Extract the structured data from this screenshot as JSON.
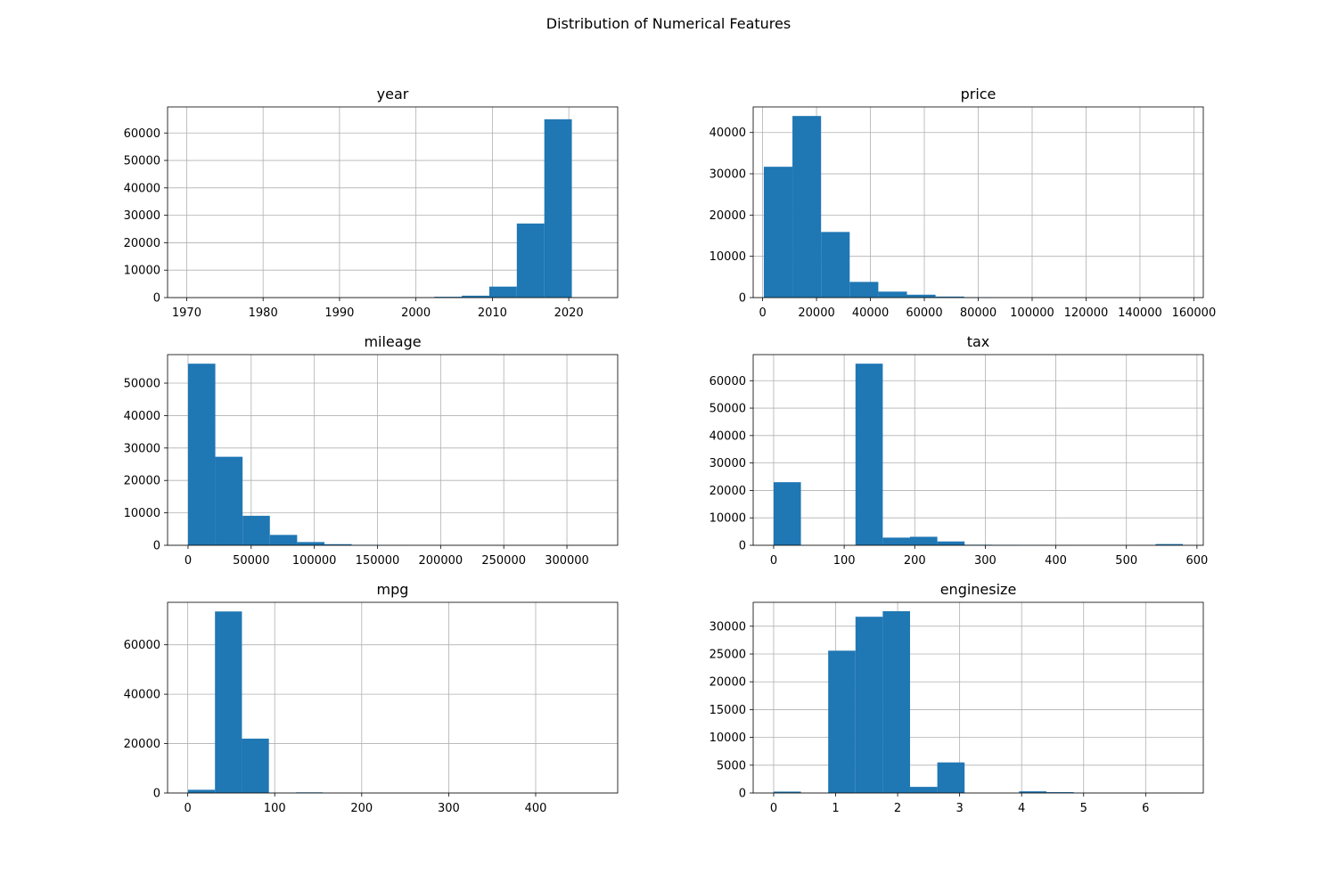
{
  "figure": {
    "title": "Distribution of Numerical Features",
    "bar_color": "#1f77b4",
    "grid_color": "#b0b0b0"
  },
  "chart_data": [
    {
      "type": "bar",
      "title": "year",
      "bin_edges": [
        1970,
        1973.6,
        1977.2,
        1980.8,
        1984.4,
        1988,
        1991.6,
        1995.2,
        1998.8,
        2002.4,
        2006,
        2009.6,
        2013.2,
        2016.8,
        2020.4
      ],
      "values": [
        0,
        0,
        0,
        0,
        0,
        0,
        0,
        0,
        50,
        300,
        700,
        4000,
        27000,
        65000
      ],
      "xlim": [
        1967.5,
        2026.4
      ],
      "ylim": [
        0,
        69500
      ],
      "xticks": [
        1970,
        1980,
        1990,
        2000,
        2010,
        2020
      ],
      "yticks": [
        0,
        10000,
        20000,
        30000,
        40000,
        50000,
        60000
      ],
      "grid": true
    },
    {
      "type": "bar",
      "title": "price",
      "bin_edges": [
        450,
        11070,
        21690,
        32310,
        42930,
        53550,
        64170,
        74790,
        85410,
        96030,
        106650,
        117270,
        127890,
        138510,
        149130,
        159750
      ],
      "values": [
        31700,
        44000,
        15900,
        3800,
        1450,
        700,
        250,
        80,
        30,
        10,
        5,
        3,
        2,
        1,
        1
      ],
      "xlim": [
        -3500,
        163500
      ],
      "ylim": [
        0,
        46200
      ],
      "xticks": [
        0,
        20000,
        40000,
        60000,
        80000,
        100000,
        120000,
        140000,
        160000
      ],
      "yticks": [
        0,
        10000,
        20000,
        30000,
        40000
      ],
      "grid": true
    },
    {
      "type": "bar",
      "title": "mileage",
      "bin_edges": [
        1,
        21600,
        43200,
        64800,
        86400,
        108000,
        129600,
        151200,
        172800,
        194400,
        216000,
        237600,
        259200,
        280800,
        302400,
        324000
      ],
      "values": [
        56000,
        27300,
        9100,
        3200,
        1000,
        350,
        120,
        40,
        15,
        8,
        4,
        2,
        1,
        1,
        1
      ],
      "xlim": [
        -16200,
        340200
      ],
      "ylim": [
        0,
        58800
      ],
      "xticks": [
        0,
        50000,
        100000,
        150000,
        200000,
        250000,
        300000
      ],
      "yticks": [
        0,
        10000,
        20000,
        30000,
        40000,
        50000
      ],
      "grid": true
    },
    {
      "type": "bar",
      "title": "tax",
      "bin_edges": [
        0,
        38.67,
        77.33,
        116,
        154.67,
        193.33,
        232,
        270.67,
        309.33,
        348,
        386.67,
        425.33,
        464,
        502.67,
        541.33,
        580
      ],
      "values": [
        23000,
        0,
        0,
        66200,
        2800,
        3100,
        1400,
        200,
        150,
        80,
        40,
        20,
        10,
        30,
        450
      ],
      "xlim": [
        -29,
        609
      ],
      "ylim": [
        0,
        69500
      ],
      "xticks": [
        0,
        100,
        200,
        300,
        400,
        500,
        600
      ],
      "yticks": [
        0,
        10000,
        20000,
        30000,
        40000,
        50000,
        60000
      ],
      "grid": true
    },
    {
      "type": "bar",
      "title": "mpg",
      "bin_edges": [
        0.3,
        31.3,
        62.3,
        93.3,
        124.3,
        155.3,
        186.3,
        217.3,
        248.3,
        279.3,
        310.3,
        341.3,
        372.3,
        403.3,
        434.3,
        470.8
      ],
      "values": [
        1300,
        73500,
        22000,
        50,
        250,
        20,
        5,
        2,
        1,
        1,
        1,
        1,
        1,
        1,
        1
      ],
      "xlim": [
        -23.2,
        494.3
      ],
      "ylim": [
        0,
        77200
      ],
      "xticks": [
        0,
        100,
        200,
        300,
        400
      ],
      "yticks": [
        0,
        20000,
        40000,
        60000
      ],
      "grid": true
    },
    {
      "type": "bar",
      "title": "enginesize",
      "bin_edges": [
        0,
        0.44,
        0.88,
        1.32,
        1.76,
        2.2,
        2.64,
        3.08,
        3.52,
        3.96,
        4.4,
        4.84,
        5.28,
        5.72,
        6.16,
        6.6
      ],
      "values": [
        250,
        0,
        25600,
        31700,
        32700,
        1100,
        5500,
        0,
        0,
        300,
        150,
        20,
        10,
        5,
        5
      ],
      "xlim": [
        -0.33,
        6.93
      ],
      "ylim": [
        0,
        34300
      ],
      "xticks": [
        0,
        1,
        2,
        3,
        4,
        5,
        6
      ],
      "yticks": [
        0,
        5000,
        10000,
        15000,
        20000,
        25000,
        30000
      ],
      "grid": true
    }
  ]
}
